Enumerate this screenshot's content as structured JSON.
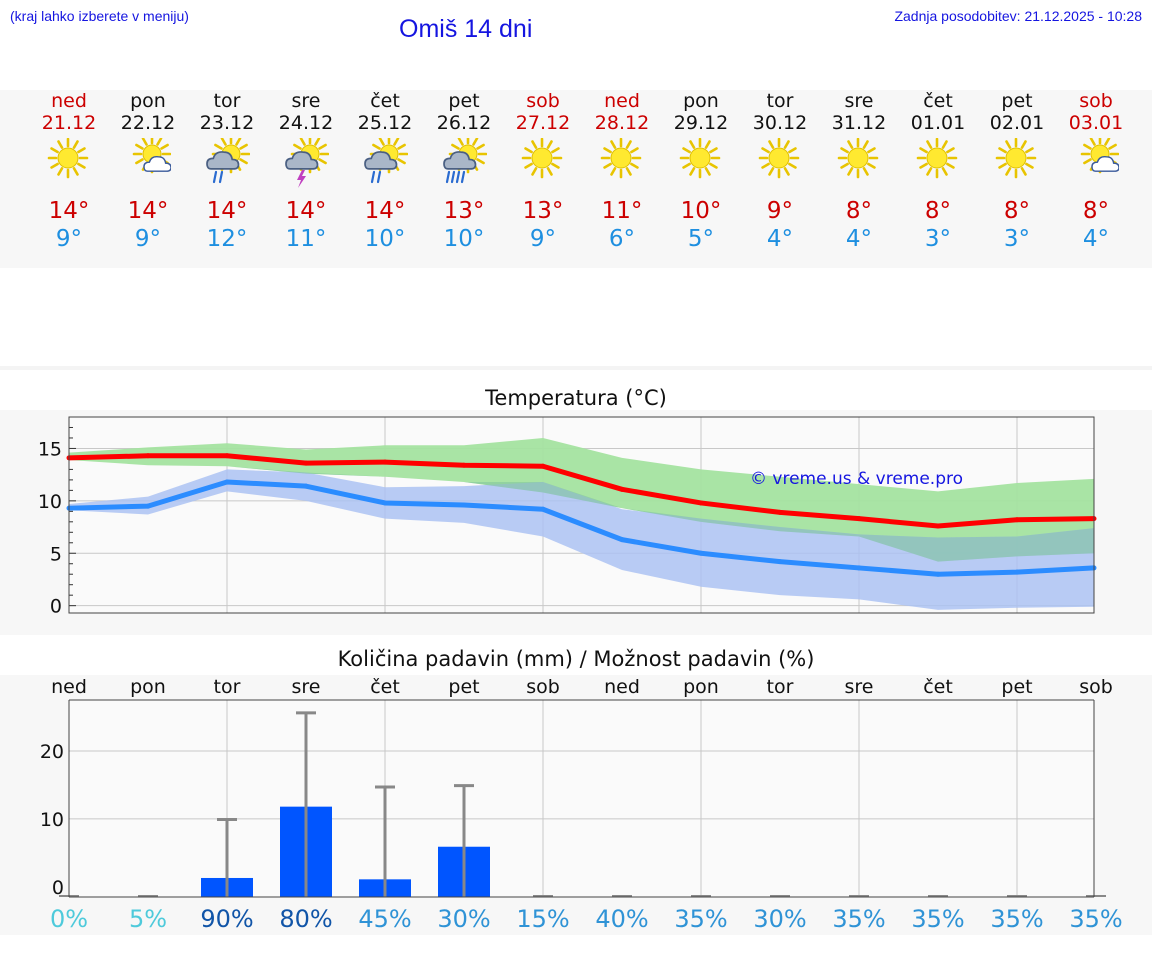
{
  "header": {
    "hint": "(kraj lahko izberete v meniju)",
    "title": "Omiš 14 dni",
    "updated": "Zadnja posodobitev: 21.12.2025 - 10:28"
  },
  "days": [
    {
      "name": "ned",
      "date": "21.12",
      "weekend": true,
      "icon": "sun-icon",
      "tmax": "14°",
      "tmin": "9°"
    },
    {
      "name": "pon",
      "date": "22.12",
      "weekend": false,
      "icon": "sun-cloud-icon",
      "tmax": "14°",
      "tmin": "9°"
    },
    {
      "name": "tor",
      "date": "23.12",
      "weekend": false,
      "icon": "sun-rain-icon",
      "tmax": "14°",
      "tmin": "12°"
    },
    {
      "name": "sre",
      "date": "24.12",
      "weekend": false,
      "icon": "sun-thunder-icon",
      "tmax": "14°",
      "tmin": "11°"
    },
    {
      "name": "čet",
      "date": "25.12",
      "weekend": false,
      "icon": "sun-rain-icon",
      "tmax": "14°",
      "tmin": "10°"
    },
    {
      "name": "pet",
      "date": "26.12",
      "weekend": false,
      "icon": "sun-heavy-rain-icon",
      "tmax": "13°",
      "tmin": "10°"
    },
    {
      "name": "sob",
      "date": "27.12",
      "weekend": true,
      "icon": "sun-icon",
      "tmax": "13°",
      "tmin": "9°"
    },
    {
      "name": "ned",
      "date": "28.12",
      "weekend": true,
      "icon": "sun-icon",
      "tmax": "11°",
      "tmin": "6°"
    },
    {
      "name": "pon",
      "date": "29.12",
      "weekend": false,
      "icon": "sun-icon",
      "tmax": "10°",
      "tmin": "5°"
    },
    {
      "name": "tor",
      "date": "30.12",
      "weekend": false,
      "icon": "sun-icon",
      "tmax": "9°",
      "tmin": "4°"
    },
    {
      "name": "sre",
      "date": "31.12",
      "weekend": false,
      "icon": "sun-icon",
      "tmax": "8°",
      "tmin": "4°"
    },
    {
      "name": "čet",
      "date": "01.01",
      "weekend": false,
      "icon": "sun-icon",
      "tmax": "8°",
      "tmin": "3°"
    },
    {
      "name": "pet",
      "date": "02.01",
      "weekend": false,
      "icon": "sun-icon",
      "tmax": "8°",
      "tmin": "3°"
    },
    {
      "name": "sob",
      "date": "03.01",
      "weekend": true,
      "icon": "sun-cloud-icon",
      "tmax": "8°",
      "tmin": "4°"
    }
  ],
  "colors": {
    "title_blue": "#1515e0",
    "red": "#cc0000",
    "max_line": "#ff0000",
    "min_line": "#2b8cff",
    "max_band": "#a4e3a0",
    "min_band": "#a9c1f3",
    "overlap_band": "#80c39c",
    "bar": "#0055ff",
    "whisker": "#888888"
  },
  "chart_data": [
    {
      "type": "line",
      "title": "Temperatura (°C)",
      "watermark": "© vreme.us & vreme.pro",
      "ylim": [
        -0.7,
        18
      ],
      "yticks": [
        0,
        5,
        10,
        15
      ],
      "x": [
        0,
        1,
        2,
        3,
        4,
        5,
        6,
        7,
        8,
        9,
        10,
        11,
        12,
        13
      ],
      "series": [
        {
          "name": "max",
          "values": [
            14.1,
            14.3,
            14.3,
            13.6,
            13.7,
            13.4,
            13.3,
            11.1,
            9.8,
            8.9,
            8.3,
            7.6,
            8.2,
            8.3
          ],
          "band_low": [
            13.9,
            13.4,
            13.3,
            12.6,
            12.3,
            11.8,
            10.8,
            9.3,
            8.0,
            7.1,
            6.6,
            4.2,
            4.7,
            5.0
          ],
          "band_high": [
            14.6,
            15.1,
            15.5,
            14.9,
            15.3,
            15.3,
            16.0,
            14.1,
            13.0,
            12.3,
            11.6,
            10.9,
            11.7,
            12.1
          ]
        },
        {
          "name": "min",
          "values": [
            9.3,
            9.5,
            11.8,
            11.4,
            9.8,
            9.6,
            9.2,
            6.3,
            5.0,
            4.2,
            3.6,
            3.0,
            3.2,
            3.6
          ],
          "band_low": [
            9.1,
            8.7,
            10.9,
            10.0,
            8.3,
            7.9,
            6.6,
            3.4,
            1.8,
            1.0,
            0.6,
            -0.4,
            -0.2,
            -0.1
          ],
          "band_high": [
            9.7,
            10.4,
            13.0,
            12.7,
            11.3,
            11.4,
            11.8,
            9.2,
            8.3,
            7.5,
            6.8,
            6.5,
            6.6,
            7.4
          ]
        }
      ]
    },
    {
      "type": "bar",
      "title": "Količina padavin (mm) / Možnost padavin (%)",
      "ylim": [
        -1.5,
        27.5
      ],
      "yticks": [
        0,
        10,
        20
      ],
      "categories": [
        "ned",
        "pon",
        "tor",
        "sre",
        "čet",
        "pet",
        "sob",
        "ned",
        "pon",
        "tor",
        "sre",
        "čet",
        "pet",
        "sob"
      ],
      "values": [
        0,
        0,
        1.3,
        11.8,
        1.1,
        5.9,
        0,
        0,
        0,
        0,
        0,
        0,
        0,
        0
      ],
      "whisker_max": [
        0,
        0,
        9.9,
        25.6,
        14.7,
        14.9,
        0,
        0,
        0,
        0,
        0,
        0,
        0,
        0
      ],
      "probability": [
        "0%",
        "5%",
        "90%",
        "80%",
        "45%",
        "30%",
        "15%",
        "40%",
        "35%",
        "30%",
        "35%",
        "35%",
        "35%",
        "35%"
      ],
      "probability_values": [
        0,
        5,
        90,
        80,
        45,
        30,
        15,
        40,
        35,
        30,
        35,
        35,
        35,
        35
      ]
    }
  ]
}
